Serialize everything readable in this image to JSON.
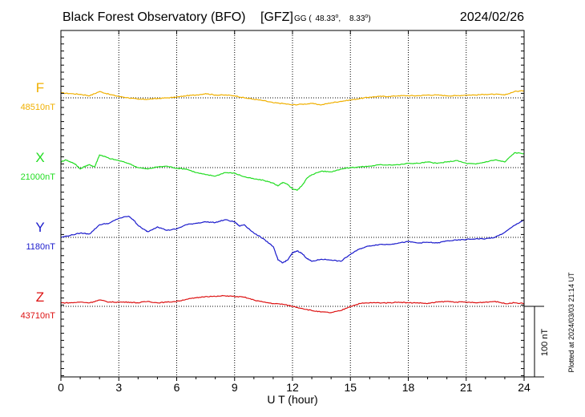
{
  "header": {
    "title": "Black Forest Observatory (BFO)",
    "institute": "[GFZ]",
    "coords_prefix": "GG (",
    "lat": "48.33",
    "lon_sep": ",",
    "lon": "8.33",
    "coords_suffix": ")",
    "degree": "o",
    "date": "2024/02/26"
  },
  "footer": {
    "plotted_note": "Plotted at 2024/03/03 21:14 UT"
  },
  "colors": {
    "F": "#f0b000",
    "X": "#22dd22",
    "Y": "#1a1acc",
    "Z": "#dd1111",
    "axis": "#000000"
  },
  "chart_data": {
    "type": "line",
    "title": "Black Forest Observatory (BFO)",
    "xlabel": "U T (hour)",
    "ylabel": "",
    "xlim": [
      0,
      24
    ],
    "x_ticks": [
      0,
      3,
      6,
      9,
      12,
      15,
      18,
      21,
      24
    ],
    "x_tick_labels": [
      "0",
      "3",
      "6",
      "9",
      "12",
      "15",
      "18",
      "21",
      "24"
    ],
    "grid": true,
    "scale_bar": {
      "label": "100 nT",
      "value_nT": 100
    },
    "series": [
      {
        "name": "F",
        "baseline_label": "48510nT",
        "baseline_nT": 48510,
        "x": [
          0,
          0.5,
          1,
          1.5,
          2,
          2.5,
          3,
          3.5,
          4,
          4.5,
          5,
          5.5,
          6,
          6.5,
          7,
          7.5,
          8,
          8.5,
          9,
          9.5,
          10,
          10.5,
          11,
          11.5,
          12,
          12.5,
          13,
          13.5,
          14,
          14.5,
          15,
          15.5,
          16,
          16.5,
          17,
          17.5,
          18,
          18.5,
          19,
          19.5,
          20,
          20.5,
          21,
          21.5,
          22,
          22.5,
          23,
          23.5,
          24
        ],
        "values": [
          48517,
          48516,
          48515,
          48513,
          48519,
          48515,
          48512,
          48510,
          48508,
          48508,
          48509,
          48510,
          48511,
          48513,
          48514,
          48516,
          48514,
          48514,
          48513,
          48510,
          48508,
          48506,
          48503,
          48502,
          48500,
          48501,
          48502,
          48500,
          48503,
          48505,
          48507,
          48509,
          48511,
          48512,
          48512,
          48513,
          48513,
          48513,
          48514,
          48514,
          48513,
          48513,
          48514,
          48514,
          48515,
          48515,
          48514,
          48519,
          48520
        ]
      },
      {
        "name": "X",
        "baseline_label": "21000nT",
        "baseline_nT": 21000,
        "x": [
          0,
          0.25,
          0.5,
          0.75,
          1,
          1.25,
          1.5,
          1.75,
          2,
          2.25,
          2.5,
          3,
          3.5,
          4,
          4.5,
          5,
          5.5,
          6,
          6.5,
          7,
          7.5,
          8,
          8.5,
          9,
          9.5,
          10,
          10.5,
          11,
          11.25,
          11.5,
          11.75,
          12,
          12.25,
          12.5,
          12.75,
          13,
          13.5,
          14,
          14.5,
          15,
          15.5,
          16,
          16.5,
          17,
          17.5,
          18,
          18.5,
          19,
          19.5,
          20,
          20.5,
          21,
          21.5,
          22,
          22.5,
          23,
          23.5,
          24
        ],
        "values": [
          21008,
          21011,
          21008,
          21005,
          20998,
          21002,
          21004,
          21001,
          21018,
          21016,
          21013,
          21010,
          21006,
          21000,
          20998,
          21001,
          21002,
          20999,
          20998,
          20993,
          20990,
          20988,
          20993,
          20992,
          20987,
          20984,
          20982,
          20978,
          20974,
          20979,
          20976,
          20970,
          20968,
          20975,
          20985,
          20990,
          20995,
          20994,
          20998,
          21000,
          21001,
          21002,
          21004,
          21004,
          21004,
          21006,
          21006,
          21008,
          21006,
          21008,
          21010,
          21006,
          21005,
          21008,
          21011,
          21008,
          21021,
          21020
        ]
      },
      {
        "name": "Y",
        "baseline_label": "1180nT",
        "baseline_nT": 1180,
        "x": [
          0,
          0.5,
          1,
          1.5,
          2,
          2.5,
          3,
          3.5,
          3.75,
          4,
          4.25,
          4.5,
          5,
          5.5,
          6,
          6.5,
          7,
          7.5,
          8,
          8.5,
          9,
          9.25,
          9.5,
          10,
          10.5,
          11,
          11.25,
          11.5,
          11.75,
          12,
          12.25,
          12.5,
          12.75,
          13,
          13.5,
          14,
          14.5,
          15,
          15.5,
          16,
          16.5,
          17,
          17.5,
          18,
          18.5,
          19,
          19.5,
          20,
          20.5,
          21,
          21.5,
          22,
          22.5,
          23,
          23.5,
          24
        ],
        "values": [
          1180,
          1183,
          1186,
          1185,
          1198,
          1200,
          1207,
          1210,
          1205,
          1197,
          1192,
          1188,
          1195,
          1190,
          1192,
          1198,
          1200,
          1202,
          1201,
          1205,
          1202,
          1196,
          1198,
          1186,
          1178,
          1167,
          1148,
          1144,
          1148,
          1158,
          1161,
          1157,
          1150,
          1146,
          1149,
          1148,
          1146,
          1156,
          1164,
          1168,
          1170,
          1170,
          1172,
          1174,
          1172,
          1173,
          1172,
          1175,
          1176,
          1177,
          1178,
          1178,
          1180,
          1187,
          1197,
          1205
        ]
      },
      {
        "name": "Z",
        "baseline_label": "43710nT",
        "baseline_nT": 43710,
        "x": [
          0,
          0.5,
          1,
          1.5,
          2,
          2.5,
          3,
          3.5,
          4,
          4.5,
          5,
          5.5,
          6,
          6.5,
          7,
          7.5,
          8,
          8.5,
          9,
          9.5,
          10,
          10.5,
          11,
          11.5,
          12,
          12.5,
          13,
          13.5,
          14,
          14.5,
          15,
          15.5,
          16,
          16.5,
          17,
          17.5,
          18,
          18.5,
          19,
          19.5,
          20,
          20.5,
          21,
          21.5,
          22,
          22.5,
          23,
          23.5,
          24
        ],
        "values": [
          43715,
          43715,
          43716,
          43715,
          43719,
          43716,
          43716,
          43716,
          43715,
          43717,
          43715,
          43716,
          43717,
          43720,
          43722,
          43724,
          43724,
          43725,
          43724,
          43723,
          43719,
          43716,
          43714,
          43713,
          43710,
          43707,
          43704,
          43702,
          43701,
          43704,
          43710,
          43714,
          43715,
          43715,
          43715,
          43716,
          43715,
          43715,
          43714,
          43716,
          43717,
          43716,
          43716,
          43715,
          43716,
          43717,
          43714,
          43715,
          43714
        ]
      }
    ]
  }
}
